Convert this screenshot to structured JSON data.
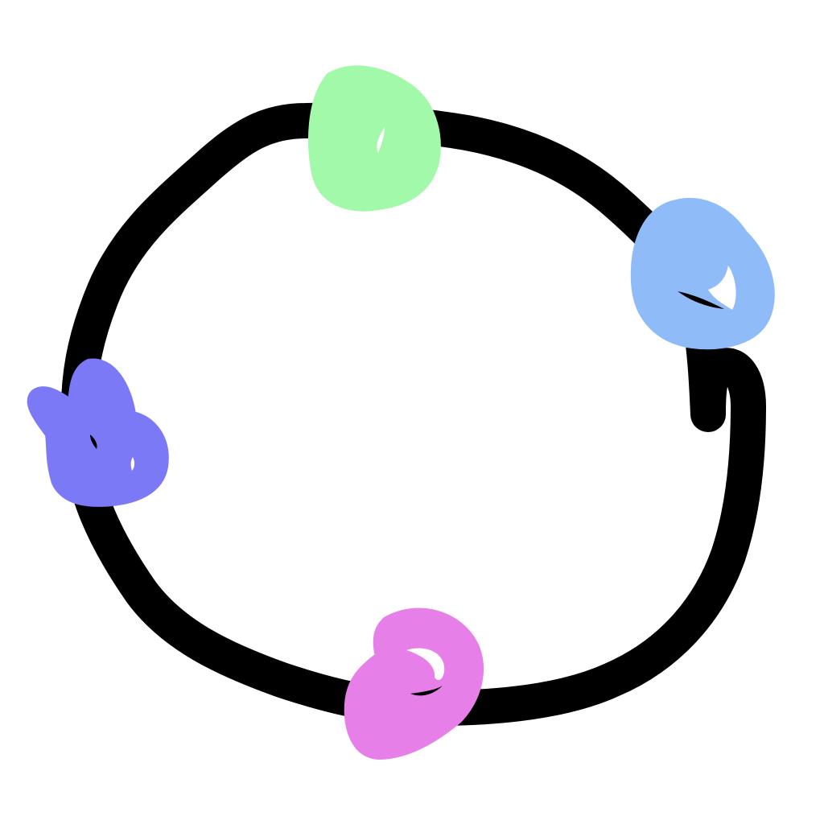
{
  "drawing": {
    "ring_color": "#000000",
    "background_color": "#ffffff",
    "blobs": [
      {
        "name": "green-blob",
        "color": "#a2f9a9",
        "position": "top"
      },
      {
        "name": "light-blue-blob",
        "color": "#8fbbf8",
        "position": "right"
      },
      {
        "name": "pink-blob",
        "color": "#e77fe9",
        "position": "bottom"
      },
      {
        "name": "purple-blob",
        "color": "#7c79f7",
        "position": "left"
      }
    ]
  }
}
